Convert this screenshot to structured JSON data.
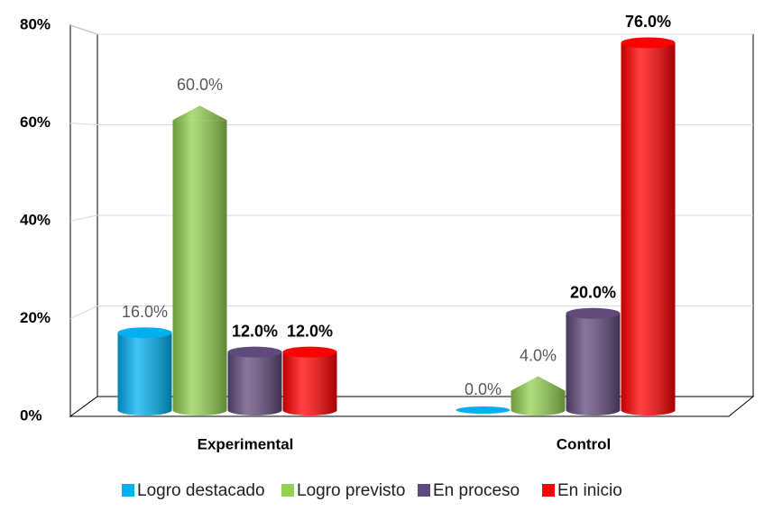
{
  "chart_data": {
    "type": "bar",
    "categories": [
      "Experimental",
      "Control"
    ],
    "series": [
      {
        "name": "Logro destacado",
        "color": "#00b0f0",
        "values": [
          16,
          0
        ],
        "value_labels": [
          "16.0%",
          "0.0%"
        ]
      },
      {
        "name": "Logro previsto",
        "color": "#92d050",
        "values": [
          60,
          4
        ],
        "value_labels": [
          "60.0%",
          "4.0%"
        ]
      },
      {
        "name": "En proceso",
        "color": "#604a7b",
        "values": [
          12,
          20
        ],
        "value_labels": [
          "12.0%",
          "20.0%"
        ]
      },
      {
        "name": "En inicio",
        "color": "#ff0000",
        "values": [
          12,
          76
        ],
        "value_labels": [
          "12.0%",
          "76.0%"
        ]
      }
    ],
    "ylim": [
      0,
      80
    ],
    "yticks": [
      {
        "value": 0,
        "label": "0%"
      },
      {
        "value": 20,
        "label": "20%"
      },
      {
        "value": 40,
        "label": "40%"
      },
      {
        "value": 60,
        "label": "60%"
      },
      {
        "value": 80,
        "label": "80%"
      }
    ],
    "grid": true,
    "legend": "bottom"
  }
}
